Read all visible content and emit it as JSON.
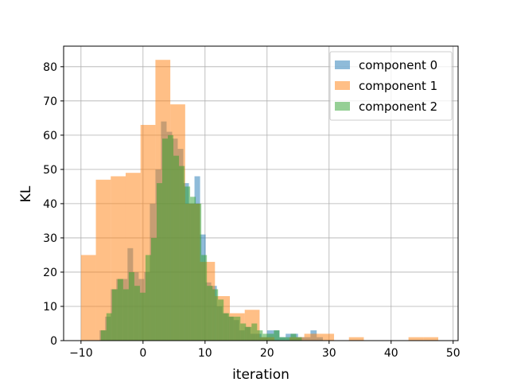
{
  "chart_data": {
    "type": "histogram",
    "xlabel": "iteration",
    "ylabel": "KL",
    "xlim": [
      -12.8,
      50.8
    ],
    "ylim": [
      0,
      86
    ],
    "x_ticks": [
      -10,
      0,
      10,
      20,
      30,
      40,
      50
    ],
    "y_ticks": [
      0,
      10,
      20,
      30,
      40,
      50,
      60,
      70,
      80
    ],
    "grid": true,
    "legend_position": "top-right",
    "series": [
      {
        "name": "component 0",
        "color": "#1f77b4",
        "opacity": 0.5,
        "bins": [
          {
            "x0": -7.0,
            "x1": -6.1,
            "count": 3
          },
          {
            "x0": -6.1,
            "x1": -5.2,
            "count": 7
          },
          {
            "x0": -5.2,
            "x1": -4.3,
            "count": 15
          },
          {
            "x0": -4.3,
            "x1": -3.4,
            "count": 18
          },
          {
            "x0": -3.4,
            "x1": -2.5,
            "count": 18
          },
          {
            "x0": -2.5,
            "x1": -1.6,
            "count": 27
          },
          {
            "x0": -1.6,
            "x1": -0.7,
            "count": 20
          },
          {
            "x0": -0.7,
            "x1": 0.2,
            "count": 18
          },
          {
            "x0": 0.2,
            "x1": 1.1,
            "count": 20
          },
          {
            "x0": 1.1,
            "x1": 2.0,
            "count": 40
          },
          {
            "x0": 2.0,
            "x1": 2.9,
            "count": 50
          },
          {
            "x0": 2.9,
            "x1": 3.8,
            "count": 64
          },
          {
            "x0": 3.8,
            "x1": 4.7,
            "count": 61
          },
          {
            "x0": 4.7,
            "x1": 5.6,
            "count": 59
          },
          {
            "x0": 5.6,
            "x1": 6.5,
            "count": 56
          },
          {
            "x0": 6.5,
            "x1": 7.4,
            "count": 46
          },
          {
            "x0": 7.4,
            "x1": 8.3,
            "count": 40
          },
          {
            "x0": 8.3,
            "x1": 9.2,
            "count": 48
          },
          {
            "x0": 9.2,
            "x1": 10.1,
            "count": 31
          },
          {
            "x0": 10.1,
            "x1": 11.0,
            "count": 17
          },
          {
            "x0": 11.0,
            "x1": 11.9,
            "count": 16
          },
          {
            "x0": 11.9,
            "x1": 12.8,
            "count": 10
          },
          {
            "x0": 12.8,
            "x1": 13.7,
            "count": 8
          },
          {
            "x0": 13.7,
            "x1": 14.6,
            "count": 7
          },
          {
            "x0": 14.6,
            "x1": 15.5,
            "count": 6
          },
          {
            "x0": 15.5,
            "x1": 16.4,
            "count": 3
          },
          {
            "x0": 16.4,
            "x1": 17.3,
            "count": 4
          },
          {
            "x0": 17.3,
            "x1": 18.2,
            "count": 2
          },
          {
            "x0": 18.2,
            "x1": 19.1,
            "count": 2
          },
          {
            "x0": 19.1,
            "x1": 20.0,
            "count": 1
          },
          {
            "x0": 20.0,
            "x1": 21.0,
            "count": 3
          },
          {
            "x0": 21.0,
            "x1": 22.0,
            "count": 3
          },
          {
            "x0": 22.0,
            "x1": 23.0,
            "count": 1
          },
          {
            "x0": 23.0,
            "x1": 24.0,
            "count": 2
          },
          {
            "x0": 24.0,
            "x1": 25.0,
            "count": 2
          },
          {
            "x0": 25.0,
            "x1": 26.0,
            "count": 1
          },
          {
            "x0": 26.0,
            "x1": 27.0,
            "count": 1
          },
          {
            "x0": 27.0,
            "x1": 28.0,
            "count": 3
          },
          {
            "x0": 28.0,
            "x1": 29.0,
            "count": 1
          }
        ]
      },
      {
        "name": "component 1",
        "color": "#ff7f0e",
        "opacity": 0.5,
        "bins": [
          {
            "x0": -10.0,
            "x1": -7.6,
            "count": 25
          },
          {
            "x0": -7.6,
            "x1": -5.2,
            "count": 47
          },
          {
            "x0": -5.2,
            "x1": -2.8,
            "count": 48
          },
          {
            "x0": -2.8,
            "x1": -0.4,
            "count": 49
          },
          {
            "x0": -0.4,
            "x1": 2.0,
            "count": 63
          },
          {
            "x0": 2.0,
            "x1": 4.4,
            "count": 82
          },
          {
            "x0": 4.4,
            "x1": 6.8,
            "count": 69
          },
          {
            "x0": 6.8,
            "x1": 9.2,
            "count": 40
          },
          {
            "x0": 9.2,
            "x1": 11.6,
            "count": 23
          },
          {
            "x0": 11.6,
            "x1": 14.0,
            "count": 13
          },
          {
            "x0": 14.0,
            "x1": 16.4,
            "count": 8
          },
          {
            "x0": 16.4,
            "x1": 18.8,
            "count": 9
          },
          {
            "x0": 18.8,
            "x1": 21.2,
            "count": 1
          },
          {
            "x0": 21.2,
            "x1": 23.6,
            "count": 0
          },
          {
            "x0": 23.6,
            "x1": 26.0,
            "count": 1
          },
          {
            "x0": 26.0,
            "x1": 28.4,
            "count": 2
          },
          {
            "x0": 28.4,
            "x1": 30.8,
            "count": 2
          },
          {
            "x0": 30.8,
            "x1": 33.2,
            "count": 0
          },
          {
            "x0": 33.2,
            "x1": 35.6,
            "count": 1
          },
          {
            "x0": 35.6,
            "x1": 38.0,
            "count": 0
          },
          {
            "x0": 38.0,
            "x1": 40.4,
            "count": 0
          },
          {
            "x0": 40.4,
            "x1": 42.8,
            "count": 0
          },
          {
            "x0": 42.8,
            "x1": 45.2,
            "count": 1
          },
          {
            "x0": 45.2,
            "x1": 47.6,
            "count": 1
          }
        ]
      },
      {
        "name": "component 2",
        "color": "#2ca02c",
        "opacity": 0.5,
        "bins": [
          {
            "x0": -6.8,
            "x1": -5.9,
            "count": 3
          },
          {
            "x0": -5.9,
            "x1": -5.0,
            "count": 8
          },
          {
            "x0": -5.0,
            "x1": -4.1,
            "count": 15
          },
          {
            "x0": -4.1,
            "x1": -3.2,
            "count": 18
          },
          {
            "x0": -3.2,
            "x1": -2.3,
            "count": 15
          },
          {
            "x0": -2.3,
            "x1": -1.4,
            "count": 20
          },
          {
            "x0": -1.4,
            "x1": -0.5,
            "count": 16
          },
          {
            "x0": -0.5,
            "x1": 0.4,
            "count": 14
          },
          {
            "x0": 0.4,
            "x1": 1.3,
            "count": 25
          },
          {
            "x0": 1.3,
            "x1": 2.2,
            "count": 30
          },
          {
            "x0": 2.2,
            "x1": 3.1,
            "count": 46
          },
          {
            "x0": 3.1,
            "x1": 4.0,
            "count": 59
          },
          {
            "x0": 4.0,
            "x1": 4.9,
            "count": 60
          },
          {
            "x0": 4.9,
            "x1": 5.8,
            "count": 54
          },
          {
            "x0": 5.8,
            "x1": 6.7,
            "count": 51
          },
          {
            "x0": 6.7,
            "x1": 7.6,
            "count": 45
          },
          {
            "x0": 7.6,
            "x1": 8.5,
            "count": 42
          },
          {
            "x0": 8.5,
            "x1": 9.4,
            "count": 40
          },
          {
            "x0": 9.4,
            "x1": 10.3,
            "count": 25
          },
          {
            "x0": 10.3,
            "x1": 11.2,
            "count": 16
          },
          {
            "x0": 11.2,
            "x1": 12.1,
            "count": 15
          },
          {
            "x0": 12.1,
            "x1": 13.0,
            "count": 12
          },
          {
            "x0": 13.0,
            "x1": 13.9,
            "count": 8
          },
          {
            "x0": 13.9,
            "x1": 14.8,
            "count": 7
          },
          {
            "x0": 14.8,
            "x1": 15.7,
            "count": 7
          },
          {
            "x0": 15.7,
            "x1": 16.6,
            "count": 5
          },
          {
            "x0": 16.6,
            "x1": 17.5,
            "count": 4
          },
          {
            "x0": 17.5,
            "x1": 18.4,
            "count": 5
          },
          {
            "x0": 18.4,
            "x1": 19.3,
            "count": 3
          },
          {
            "x0": 19.3,
            "x1": 20.2,
            "count": 2
          },
          {
            "x0": 20.2,
            "x1": 21.1,
            "count": 2
          },
          {
            "x0": 21.1,
            "x1": 22.0,
            "count": 3
          },
          {
            "x0": 22.0,
            "x1": 22.9,
            "count": 1
          },
          {
            "x0": 22.9,
            "x1": 23.8,
            "count": 1
          },
          {
            "x0": 23.8,
            "x1": 24.7,
            "count": 2
          },
          {
            "x0": 24.7,
            "x1": 25.6,
            "count": 1
          }
        ]
      }
    ]
  }
}
